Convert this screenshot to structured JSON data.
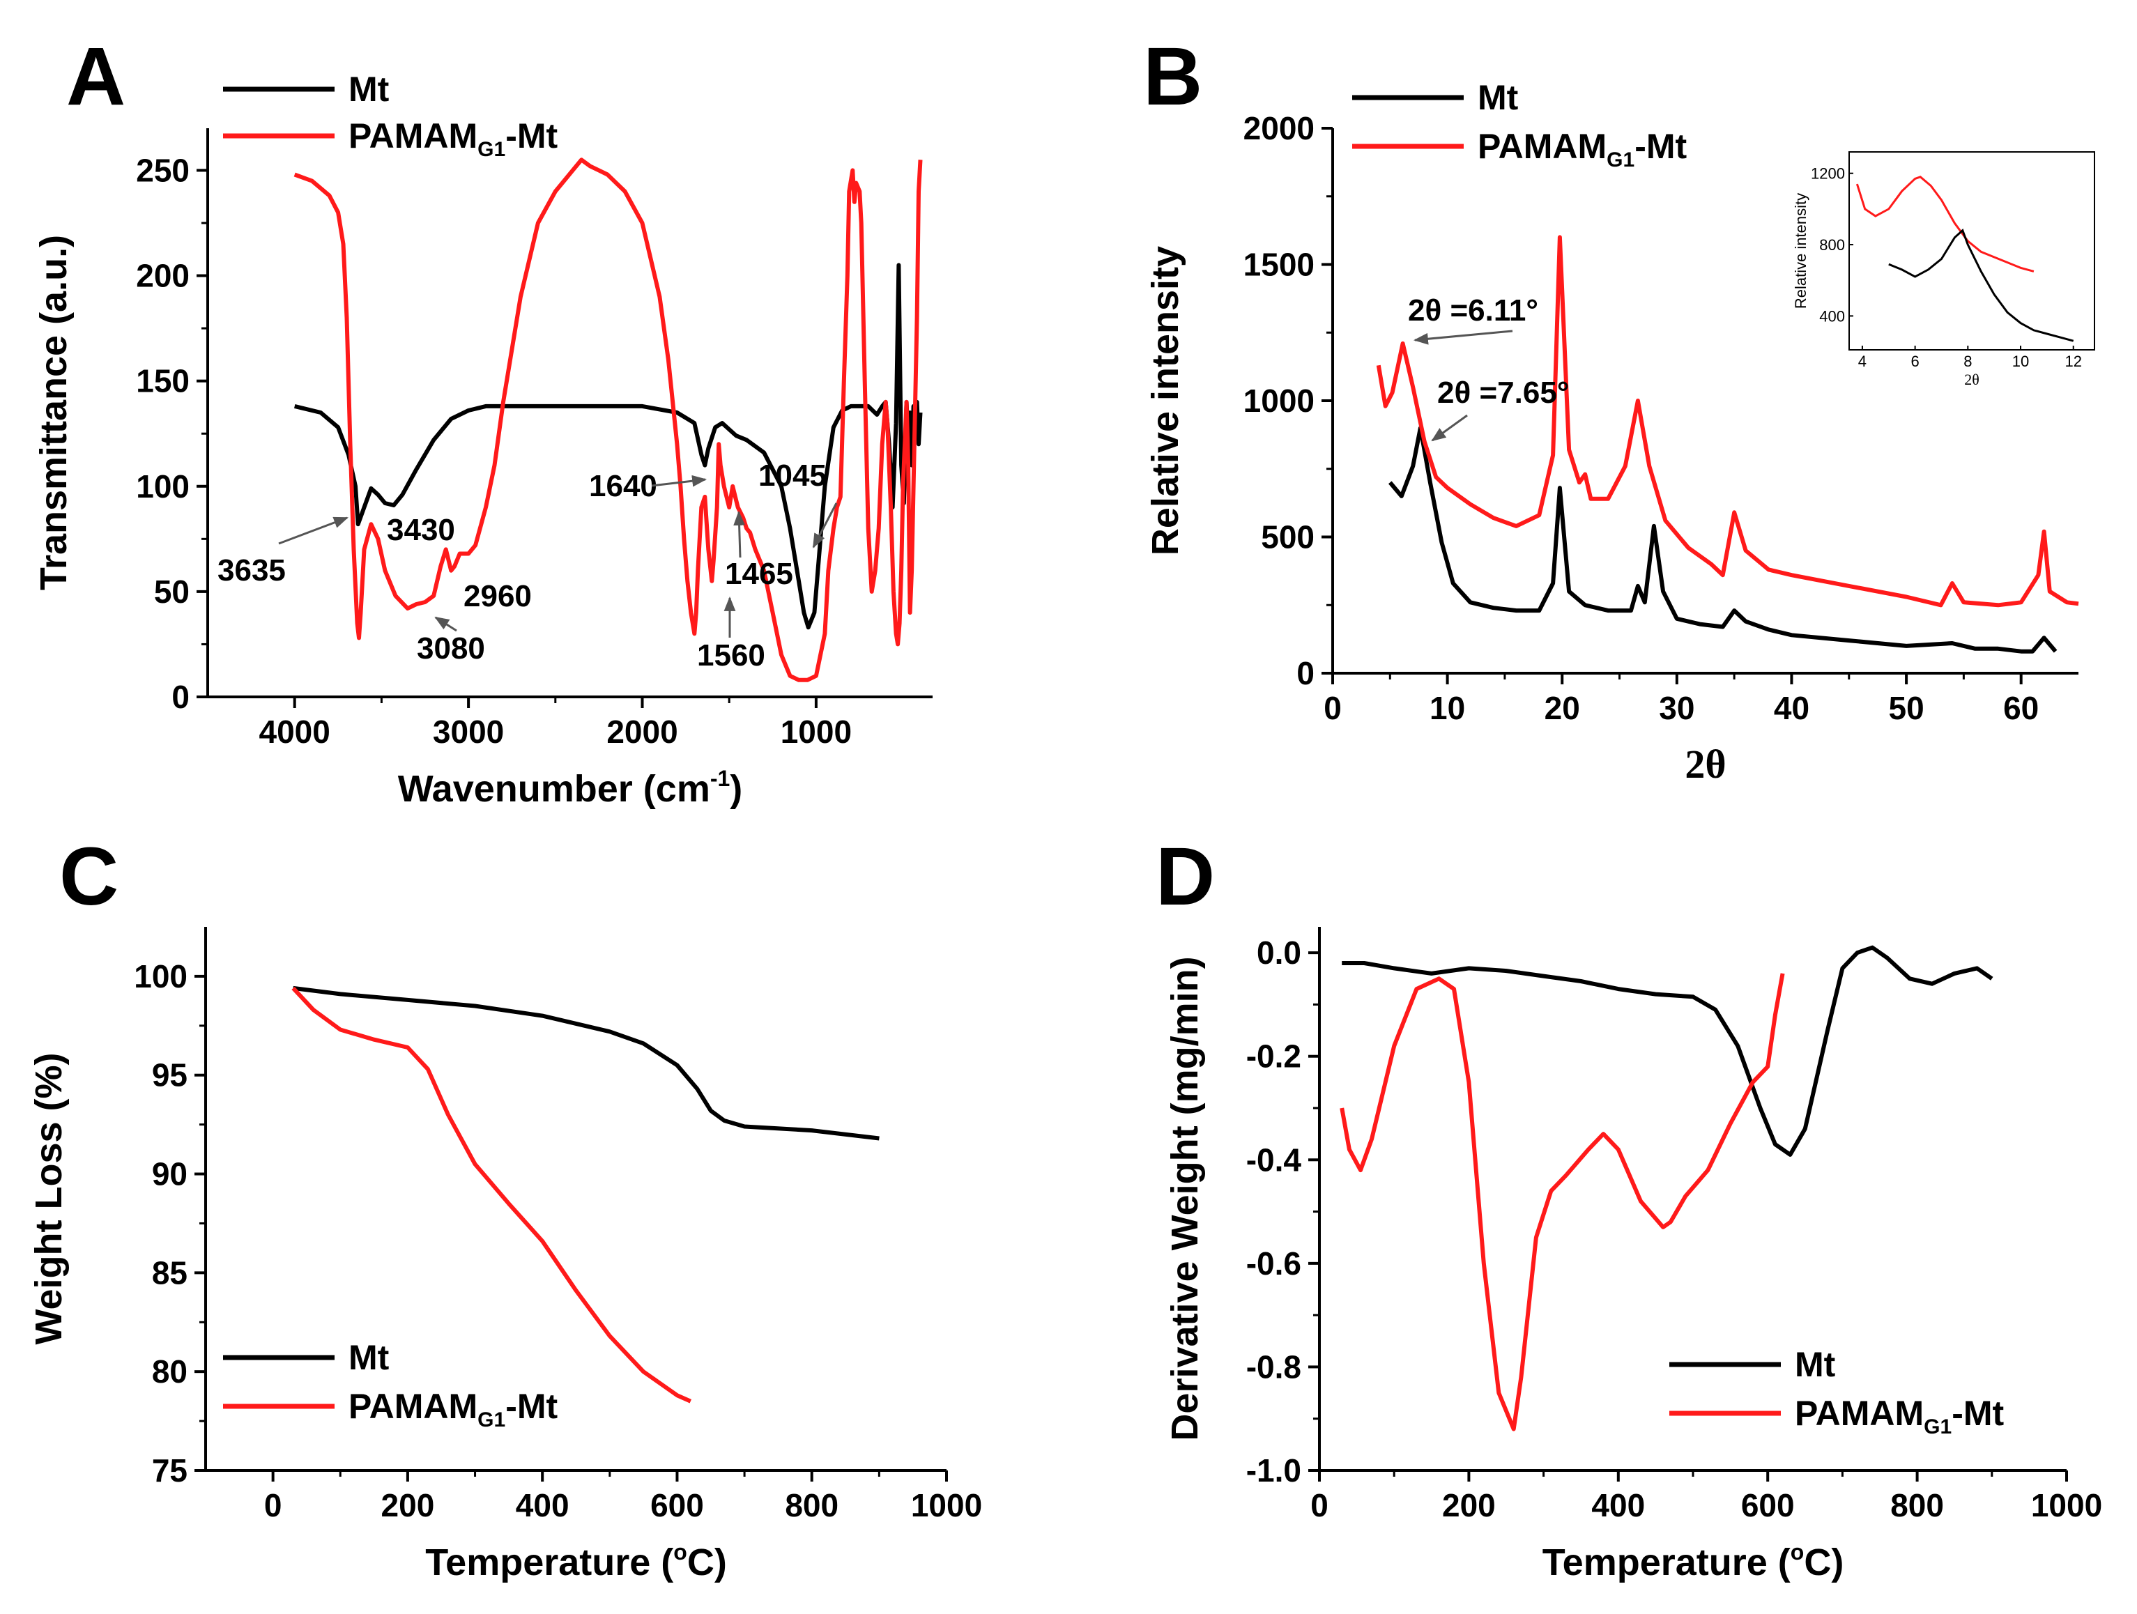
{
  "colors": {
    "mt": "#000000",
    "pamam": "#ff1a1a",
    "arrow": "#555555"
  },
  "legend": {
    "mt": "Mt",
    "pamam_main": "PAMAM",
    "pamam_sub": "G1",
    "pamam_suffix": "-Mt"
  },
  "chart_data": [
    {
      "panel": "A",
      "type": "line",
      "xlabel": "Wavenumber (cm",
      "xlabel_sup": "-1",
      "xlabel_end": ")",
      "ylabel": "Transmittance (a.u.)",
      "xlim": [
        4500,
        330
      ],
      "ylim": [
        0,
        270
      ],
      "xticks": [
        4000,
        3000,
        2000,
        1000
      ],
      "yticks": [
        0,
        50,
        100,
        150,
        200,
        250
      ],
      "legend_position": "top-left",
      "series": [
        {
          "name": "Mt",
          "color": "#000000",
          "x": [
            4000,
            3850,
            3750,
            3690,
            3650,
            3635,
            3600,
            3560,
            3520,
            3480,
            3430,
            3380,
            3300,
            3200,
            3100,
            3000,
            2900,
            2800,
            2600,
            2400,
            2000,
            1800,
            1700,
            1660,
            1640,
            1620,
            1580,
            1540,
            1500,
            1460,
            1400,
            1300,
            1200,
            1150,
            1100,
            1070,
            1045,
            1010,
            980,
            950,
            900,
            850,
            800,
            700,
            650,
            620,
            600,
            580,
            560,
            540,
            525,
            510,
            495,
            480,
            470,
            460,
            450,
            440,
            430,
            420,
            410,
            400
          ],
          "y": [
            138,
            135,
            128,
            115,
            100,
            82,
            90,
            99,
            96,
            92,
            91,
            96,
            108,
            122,
            132,
            136,
            138,
            138,
            138,
            138,
            138,
            135,
            130,
            115,
            110,
            118,
            128,
            130,
            127,
            124,
            122,
            116,
            100,
            80,
            55,
            40,
            33,
            40,
            70,
            100,
            128,
            136,
            138,
            138,
            134,
            138,
            140,
            120,
            90,
            130,
            205,
            110,
            92,
            140,
            120,
            135,
            110,
            138,
            130,
            140,
            120,
            135
          ]
        },
        {
          "name": "PAMAM_G1-Mt",
          "color": "#ff1a1a",
          "x": [
            4000,
            3900,
            3800,
            3750,
            3720,
            3700,
            3680,
            3660,
            3640,
            3630,
            3620,
            3600,
            3560,
            3520,
            3480,
            3420,
            3350,
            3300,
            3250,
            3200,
            3160,
            3130,
            3100,
            3080,
            3050,
            3000,
            2960,
            2900,
            2850,
            2800,
            2700,
            2600,
            2500,
            2400,
            2350,
            2300,
            2250,
            2200,
            2100,
            2000,
            1900,
            1850,
            1800,
            1780,
            1760,
            1740,
            1720,
            1700,
            1690,
            1680,
            1660,
            1640,
            1620,
            1600,
            1590,
            1570,
            1560,
            1550,
            1530,
            1500,
            1480,
            1465,
            1450,
            1420,
            1400,
            1380,
            1350,
            1300,
            1250,
            1200,
            1150,
            1100,
            1050,
            1000,
            950,
            930,
            900,
            880,
            860,
            840,
            820,
            810,
            790,
            780,
            770,
            750,
            740,
            720,
            700,
            680,
            660,
            640,
            620,
            600,
            590,
            570,
            555,
            540,
            530,
            520,
            510,
            500,
            490,
            480,
            470,
            460,
            450,
            440,
            430,
            420,
            410,
            400
          ],
          "y": [
            248,
            245,
            238,
            230,
            215,
            180,
            120,
            70,
            35,
            28,
            40,
            70,
            82,
            75,
            60,
            48,
            42,
            44,
            45,
            48,
            62,
            70,
            60,
            62,
            68,
            68,
            72,
            90,
            110,
            140,
            190,
            225,
            240,
            250,
            255,
            252,
            250,
            248,
            240,
            225,
            190,
            160,
            120,
            100,
            75,
            55,
            40,
            30,
            40,
            60,
            90,
            95,
            70,
            55,
            65,
            90,
            120,
            110,
            100,
            90,
            100,
            95,
            90,
            85,
            80,
            78,
            70,
            60,
            40,
            20,
            10,
            8,
            8,
            10,
            30,
            60,
            80,
            90,
            95,
            150,
            200,
            240,
            250,
            235,
            244,
            240,
            225,
            150,
            80,
            50,
            60,
            80,
            120,
            140,
            130,
            90,
            50,
            30,
            25,
            35,
            60,
            100,
            120,
            140,
            110,
            40,
            60,
            100,
            140,
            180,
            240,
            255
          ]
        }
      ],
      "annotations": [
        "3635",
        "3430",
        "2960",
        "3080",
        "1640",
        "1045",
        "1465",
        "1560"
      ]
    },
    {
      "panel": "B",
      "type": "line",
      "xlabel": "2θ",
      "ylabel": "Relative intensity",
      "xlim": [
        0,
        65
      ],
      "ylim": [
        0,
        2000
      ],
      "xticks": [
        0,
        10,
        20,
        30,
        40,
        50,
        60
      ],
      "yticks": [
        0,
        500,
        1000,
        1500,
        2000
      ],
      "legend_position": "top-left",
      "series": [
        {
          "name": "Mt",
          "color": "#000000",
          "x": [
            5,
            6,
            7,
            7.65,
            8.5,
            9.5,
            10.5,
            12,
            14,
            16,
            18,
            19.2,
            19.8,
            20.6,
            22,
            24,
            26,
            26.6,
            27.2,
            28,
            28.8,
            30,
            32,
            34,
            35,
            36,
            38,
            40,
            45,
            50,
            54,
            56,
            58,
            60,
            61,
            62,
            63
          ],
          "y": [
            700,
            650,
            760,
            900,
            700,
            480,
            330,
            260,
            240,
            230,
            230,
            330,
            680,
            300,
            250,
            230,
            230,
            320,
            260,
            540,
            300,
            200,
            180,
            170,
            230,
            190,
            160,
            140,
            120,
            100,
            110,
            90,
            90,
            80,
            80,
            130,
            80
          ]
        },
        {
          "name": "PAMAM_G1-Mt",
          "color": "#ff1a1a",
          "x": [
            4,
            4.6,
            5.2,
            6.11,
            7,
            8,
            9,
            10,
            12,
            14,
            16,
            18,
            19.2,
            19.8,
            20.6,
            21.5,
            22,
            22.5,
            24,
            25.5,
            26.6,
            27.6,
            29,
            31,
            33,
            34,
            35,
            36,
            38,
            40,
            45,
            50,
            53,
            54,
            55,
            58,
            60,
            61.5,
            62,
            62.5,
            64,
            65
          ],
          "y": [
            1130,
            980,
            1030,
            1210,
            1050,
            850,
            720,
            680,
            620,
            570,
            540,
            580,
            800,
            1600,
            820,
            700,
            730,
            640,
            640,
            760,
            1000,
            760,
            560,
            460,
            400,
            360,
            590,
            450,
            380,
            360,
            320,
            280,
            250,
            330,
            260,
            250,
            260,
            360,
            520,
            300,
            260,
            255
          ]
        }
      ],
      "annotations": [
        "2θ =6.11°",
        "2θ =7.65°"
      ],
      "inset": {
        "xlabel": "2θ",
        "ylabel": "Relative intensity",
        "xlim": [
          3.5,
          12.8
        ],
        "ylim": [
          210,
          1320
        ],
        "xticks": [
          4,
          6,
          8,
          10,
          12
        ],
        "yticks": [
          400,
          800,
          1200
        ],
        "series": [
          {
            "name": "PAMAM_G1-Mt",
            "color": "#ff1a1a",
            "x": [
              3.8,
              4.1,
              4.5,
              5,
              5.5,
              6,
              6.2,
              6.6,
              7,
              7.5,
              8,
              8.5,
              9,
              9.5,
              10,
              10.5
            ],
            "y": [
              1140,
              1000,
              960,
              1000,
              1100,
              1170,
              1180,
              1130,
              1050,
              920,
              820,
              760,
              730,
              700,
              670,
              650
            ]
          },
          {
            "name": "Mt",
            "color": "#000000",
            "x": [
              5,
              5.5,
              6,
              6.5,
              7,
              7.5,
              7.8,
              8,
              8.5,
              9,
              9.5,
              10,
              10.5,
              11,
              11.5,
              12
            ],
            "y": [
              690,
              660,
              620,
              660,
              720,
              840,
              880,
              800,
              650,
              520,
              420,
              360,
              320,
              300,
              280,
              260
            ]
          }
        ]
      }
    },
    {
      "panel": "C",
      "type": "line",
      "xlabel": "Temperature (",
      "xlabel_sup": "o",
      "xlabel_end": "C)",
      "ylabel": "Weight Loss (%)",
      "xlim": [
        -100,
        1000
      ],
      "ylim": [
        75,
        102.5
      ],
      "xticks": [
        0,
        200,
        400,
        600,
        800,
        1000
      ],
      "yticks": [
        75,
        80,
        85,
        90,
        95,
        100
      ],
      "legend_position": "bottom-left",
      "series": [
        {
          "name": "Mt",
          "color": "#000000",
          "x": [
            30,
            100,
            200,
            300,
            400,
            500,
            550,
            600,
            630,
            650,
            670,
            700,
            800,
            900
          ],
          "y": [
            99.4,
            99.1,
            98.8,
            98.5,
            98.0,
            97.2,
            96.6,
            95.5,
            94.3,
            93.2,
            92.7,
            92.4,
            92.2,
            91.8
          ]
        },
        {
          "name": "PAMAM_G1-Mt",
          "color": "#ff1a1a",
          "x": [
            30,
            60,
            100,
            150,
            200,
            230,
            260,
            300,
            350,
            400,
            450,
            500,
            550,
            600,
            620
          ],
          "y": [
            99.4,
            98.3,
            97.3,
            96.8,
            96.4,
            95.3,
            93.0,
            90.5,
            88.5,
            86.6,
            84.1,
            81.8,
            80.0,
            78.8,
            78.5
          ]
        }
      ]
    },
    {
      "panel": "D",
      "type": "line",
      "xlabel": "Temperature (",
      "xlabel_sup": "o",
      "xlabel_end": "C)",
      "ylabel": "Derivative Weight (mg/min)",
      "xlim": [
        0,
        1000
      ],
      "ylim": [
        -1.0,
        0.05
      ],
      "xticks": [
        0,
        200,
        400,
        600,
        800,
        1000
      ],
      "yticks": [
        0.0,
        -0.2,
        -0.4,
        -0.6,
        -0.8,
        -1.0
      ],
      "legend_position": "bottom-right",
      "series": [
        {
          "name": "Mt",
          "color": "#000000",
          "x": [
            30,
            60,
            100,
            150,
            200,
            250,
            300,
            350,
            400,
            450,
            500,
            530,
            560,
            590,
            610,
            630,
            650,
            680,
            700,
            720,
            740,
            760,
            790,
            820,
            850,
            880,
            900
          ],
          "y": [
            -0.02,
            -0.02,
            -0.03,
            -0.04,
            -0.03,
            -0.035,
            -0.045,
            -0.055,
            -0.07,
            -0.08,
            -0.085,
            -0.11,
            -0.18,
            -0.3,
            -0.37,
            -0.39,
            -0.34,
            -0.15,
            -0.03,
            0.0,
            0.01,
            -0.01,
            -0.05,
            -0.06,
            -0.04,
            -0.03,
            -0.05
          ]
        },
        {
          "name": "PAMAM_G1-Mt",
          "color": "#ff1a1a",
          "x": [
            30,
            40,
            55,
            70,
            100,
            130,
            160,
            180,
            200,
            220,
            240,
            260,
            270,
            290,
            310,
            330,
            360,
            380,
            400,
            430,
            460,
            470,
            490,
            520,
            550,
            580,
            600,
            610,
            620
          ],
          "y": [
            -0.3,
            -0.38,
            -0.42,
            -0.36,
            -0.18,
            -0.07,
            -0.05,
            -0.07,
            -0.25,
            -0.6,
            -0.85,
            -0.92,
            -0.82,
            -0.55,
            -0.46,
            -0.43,
            -0.38,
            -0.35,
            -0.38,
            -0.48,
            -0.53,
            -0.52,
            -0.47,
            -0.42,
            -0.33,
            -0.25,
            -0.22,
            -0.12,
            -0.04
          ]
        }
      ]
    }
  ]
}
